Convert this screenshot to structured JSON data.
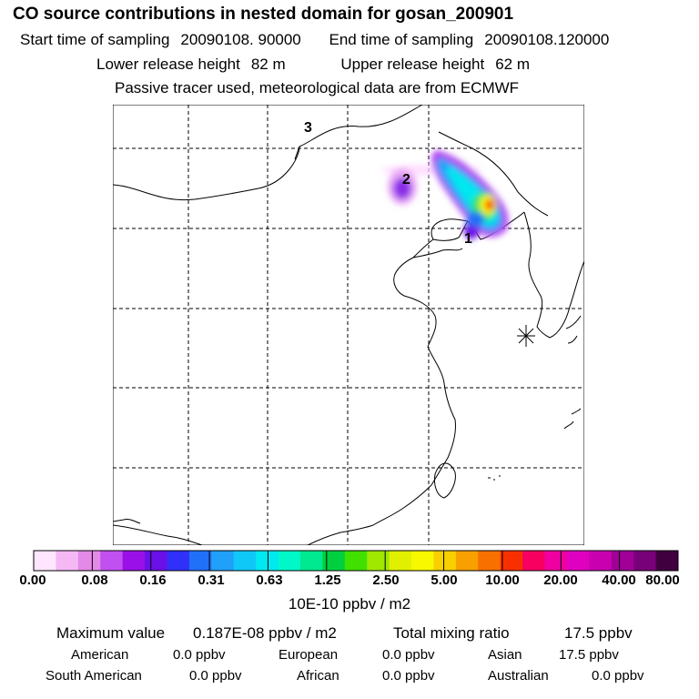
{
  "header": {
    "title": "CO  source contributions in nested domain for gosan_200901",
    "start_label": "Start time of sampling",
    "start_value": "20090108. 90000",
    "end_label": "End time of sampling",
    "end_value": "20090108.120000",
    "lower_label": "Lower release height",
    "lower_value": "82 m",
    "upper_label": "Upper release height",
    "upper_value": "62 m",
    "note": "Passive tracer used, meteorological data are from ECMWF"
  },
  "map": {
    "labels": [
      "1",
      "2",
      "3"
    ],
    "receptor_marker": "asterisk-icon"
  },
  "colorbar": {
    "ticks": [
      "0.00",
      "0.08",
      "0.16",
      "0.31",
      "0.63",
      "1.25",
      "2.50",
      "5.00",
      "10.00",
      "20.00",
      "40.00",
      "80.00"
    ],
    "unit": "10E-10 ppbv / m2",
    "colors": [
      "#ffe6ff",
      "#f5b8f5",
      "#e38ae8",
      "#c050f0",
      "#9a10e8",
      "#6a10e8",
      "#3030f8",
      "#2070f8",
      "#20a0f8",
      "#10c8f8",
      "#00e8f0",
      "#00f8c8",
      "#00e890",
      "#00d040",
      "#40e000",
      "#a0e800",
      "#e0f000",
      "#f8f800",
      "#f8d000",
      "#f8a000",
      "#f87000",
      "#f83000",
      "#f80060",
      "#f000a0",
      "#e000c0",
      "#c800b0",
      "#a00098",
      "#780078",
      "#400040"
    ]
  },
  "stats": {
    "max_label": "Maximum value",
    "max_value": "0.187E-08 ppbv / m2",
    "total_label": "Total mixing ratio",
    "total_value": "17.5 ppbv"
  },
  "contributions": {
    "american_label": "American",
    "american_value": "0.0 ppbv",
    "european_label": "European",
    "european_value": "0.0 ppbv",
    "asian_label": "Asian",
    "asian_value": "17.5 ppbv",
    "south_american_label": "South American",
    "south_american_value": "0.0 ppbv",
    "african_label": "African",
    "african_value": "0.0 ppbv",
    "australian_label": "Australian",
    "australian_value": "0.0 ppbv"
  }
}
